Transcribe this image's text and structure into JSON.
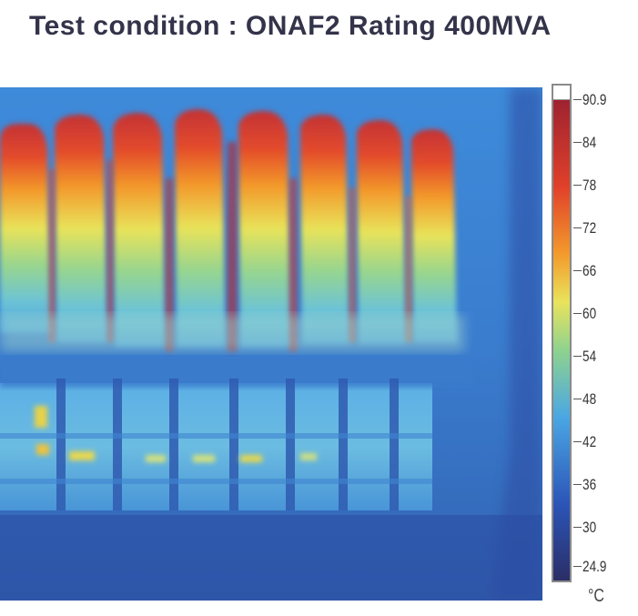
{
  "title": "Test condition : ONAF2 Rating 400MVA",
  "scale": {
    "max": "90.9",
    "min": "24.9",
    "ticks": [
      "84",
      "78",
      "72",
      "66",
      "60",
      "54",
      "48",
      "42",
      "36",
      "30"
    ],
    "unit": "°C",
    "colors": {
      "high": "#9e2330",
      "upper": "#e0402a",
      "warm": "#f39a2c",
      "mid": "#e9e35c",
      "cool": "#8fd38e",
      "cold": "#4aa7e3",
      "low": "#2b55b8",
      "lowest": "#2b2e66"
    }
  }
}
